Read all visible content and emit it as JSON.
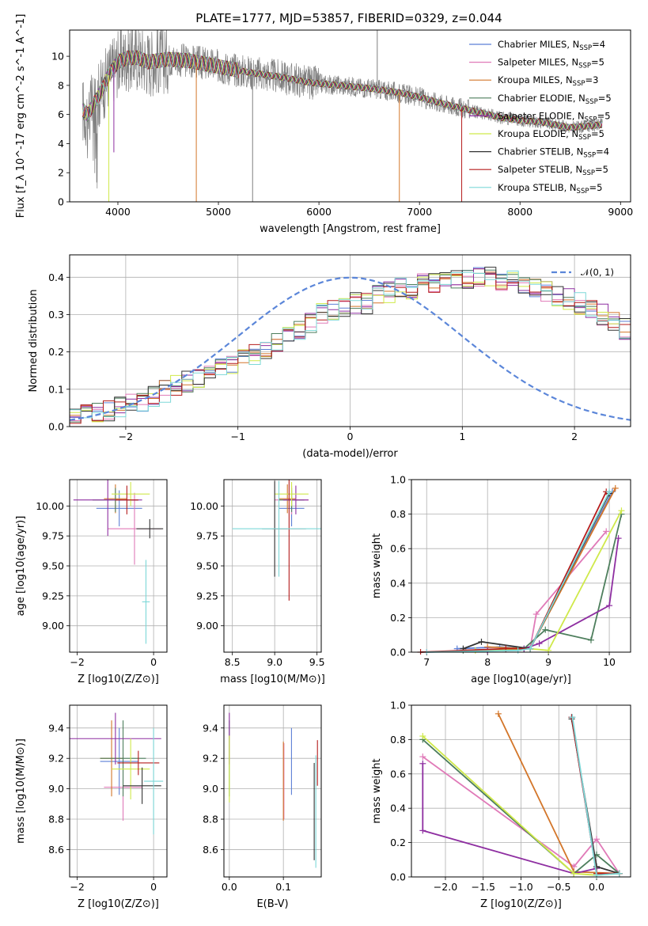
{
  "figure": {
    "title": "PLATE=1777, MJD=53857, FIBERID=0329, z=0.044"
  },
  "models": [
    {
      "name": "Chabrier MILES",
      "nssp": "4",
      "color": "#5c7fd6"
    },
    {
      "name": "Salpeter MILES",
      "nssp": "5",
      "color": "#e07ab8"
    },
    {
      "name": "Kroupa MILES",
      "nssp": "3",
      "color": "#d3762a"
    },
    {
      "name": "Chabrier ELODIE",
      "nssp": "5",
      "color": "#4d7e5c"
    },
    {
      "name": "Salpeter ELODIE",
      "nssp": "5",
      "color": "#8e2ea1"
    },
    {
      "name": "Kroupa ELODIE",
      "nssp": "5",
      "color": "#cfe94a"
    },
    {
      "name": "Chabrier STELIB",
      "nssp": "4",
      "color": "#333333"
    },
    {
      "name": "Salpeter STELIB",
      "nssp": "5",
      "color": "#b51c1c"
    },
    {
      "name": "Kroupa STELIB",
      "nssp": "5",
      "color": "#7dd8d8"
    }
  ],
  "chart_data": [
    {
      "id": "spectrum",
      "type": "line",
      "xlabel": "wavelength [Angstrom, rest frame]",
      "ylabel": "Flux [f_λ 10^-17 erg cm^-2 s^-1 A^-1]",
      "xlim": [
        3520,
        9100
      ],
      "ylim": [
        0,
        11.8
      ],
      "xticks": [
        "4000",
        "5000",
        "6000",
        "7000",
        "8000",
        "9000"
      ],
      "yticks": [
        "0",
        "2",
        "4",
        "6",
        "8",
        "10"
      ],
      "grid": false,
      "legend_position": "top-right",
      "data_color": "#808080",
      "continuum": {
        "x": [
          3650,
          3700,
          3750,
          3800,
          3850,
          3900,
          4000,
          4100,
          4200,
          4300,
          4500,
          4700,
          5000,
          5300,
          5600,
          5900,
          6200,
          6500,
          6800,
          7000,
          7200,
          7500,
          7800,
          8000,
          8200,
          8500,
          8800
        ],
        "y": [
          6.3,
          6.0,
          6.6,
          7.2,
          7.8,
          8.6,
          9.6,
          9.9,
          9.9,
          9.6,
          9.8,
          9.7,
          9.3,
          8.9,
          8.6,
          8.2,
          8.0,
          7.8,
          7.5,
          7.2,
          6.8,
          6.3,
          5.8,
          5.6,
          5.5,
          5.1,
          5.3
        ]
      },
      "spikes": [
        {
          "x": 3910,
          "y": 0.0,
          "series": "Kroupa ELODIE"
        },
        {
          "x": 3960,
          "y": 3.4,
          "series": "Salpeter ELODIE"
        },
        {
          "x": 4780,
          "y": 0.0,
          "series": "Kroupa MILES"
        },
        {
          "x": 5340,
          "y": 0.0,
          "series": "data"
        },
        {
          "x": 6580,
          "y": 11.8,
          "series": "data"
        },
        {
          "x": 6800,
          "y": 0.0,
          "series": "Kroupa MILES"
        },
        {
          "x": 7420,
          "y": 0.0,
          "series": "Salpeter STELIB"
        }
      ]
    },
    {
      "id": "residuals",
      "type": "bar",
      "xlabel": "(data-model)/error",
      "ylabel": "Normed distribution",
      "xlim": [
        -2.5,
        2.5
      ],
      "ylim": [
        0,
        0.46
      ],
      "xticks": [
        "−2",
        "−1",
        "0",
        "1",
        "2"
      ],
      "yticks": [
        "0.0",
        "0.1",
        "0.2",
        "0.3",
        "0.4"
      ],
      "grid": true,
      "legend": [
        {
          "label": "𝒩(0, 1)",
          "color": "#5b86d9",
          "style": "dashed"
        }
      ],
      "legend_position": "top-right",
      "bin_width": 0.1,
      "bin_start": -2.5,
      "envelope": [
        0.03,
        0.035,
        0.04,
        0.045,
        0.05,
        0.06,
        0.07,
        0.08,
        0.095,
        0.11,
        0.12,
        0.135,
        0.15,
        0.16,
        0.17,
        0.18,
        0.19,
        0.21,
        0.22,
        0.24,
        0.26,
        0.28,
        0.3,
        0.31,
        0.32,
        0.33,
        0.33,
        0.35,
        0.36,
        0.37,
        0.37,
        0.38,
        0.38,
        0.39,
        0.39,
        0.4,
        0.4,
        0.4,
        0.39,
        0.39,
        0.38,
        0.37,
        0.36,
        0.35,
        0.34,
        0.33,
        0.32,
        0.3,
        0.28,
        0.26
      ]
    },
    {
      "id": "age-vs-Z",
      "type": "scatter",
      "xlabel": "Z [log10(Z/Z⊙)]",
      "ylabel": "age  [log10(age/yr)]",
      "xlim": [
        -2.2,
        0.35
      ],
      "ylim": [
        8.78,
        10.22
      ],
      "xticks": [
        "−2",
        "0"
      ],
      "yticks": [
        "9.00",
        "9.25",
        "9.50",
        "9.75",
        "10.00"
      ],
      "grid": true,
      "points": [
        {
          "series": "Chabrier MILES",
          "x": -0.9,
          "y": 9.98,
          "xerr": 0.6,
          "yerr": 0.15
        },
        {
          "series": "Salpeter MILES",
          "x": -0.5,
          "y": 9.81,
          "xerr": 0.7,
          "yerr": 0.3
        },
        {
          "series": "Kroupa MILES",
          "x": -1.0,
          "y": 10.06,
          "xerr": 0.3,
          "yerr": 0.12
        },
        {
          "series": "Chabrier ELODIE",
          "x": -1.0,
          "y": 10.05,
          "xerr": 0.6,
          "yerr": 0.1
        },
        {
          "series": "Salpeter ELODIE",
          "x": -1.2,
          "y": 10.05,
          "xerr": 0.9,
          "yerr": 0.3
        },
        {
          "series": "Kroupa ELODIE",
          "x": -0.6,
          "y": 10.1,
          "xerr": 0.5,
          "yerr": 0.1
        },
        {
          "series": "Chabrier STELIB",
          "x": -0.1,
          "y": 9.81,
          "xerr": 0.35,
          "yerr": 0.08
        },
        {
          "series": "Salpeter STELIB",
          "x": -0.7,
          "y": 10.05,
          "xerr": 0.3,
          "yerr": 0.12
        },
        {
          "series": "Kroupa STELIB",
          "x": -0.2,
          "y": 9.2,
          "xerr": 0.1,
          "yerr": 0.35
        }
      ]
    },
    {
      "id": "age-vs-mass",
      "type": "scatter",
      "xlabel": "mass [log10(M/M⊙)]",
      "ylabel": "",
      "xlim": [
        8.4,
        9.55
      ],
      "ylim": [
        8.78,
        10.22
      ],
      "xticks": [
        "8.5",
        "9.0",
        "9.5"
      ],
      "yticks": [
        "9.00",
        "9.25",
        "9.50",
        "9.75",
        "10.00"
      ],
      "grid": true,
      "points": [
        {
          "series": "Chabrier MILES",
          "x": 9.2,
          "y": 9.98,
          "xerr": 0.15,
          "yerr": 0.15
        },
        {
          "series": "Salpeter MILES",
          "x": 9.2,
          "y": 10.05,
          "xerr": 0.2,
          "yerr": 0.12
        },
        {
          "series": "Kroupa MILES",
          "x": 9.15,
          "y": 10.06,
          "xerr": 0.1,
          "yerr": 0.12
        },
        {
          "series": "Chabrier ELODIE",
          "x": 9.2,
          "y": 10.05,
          "xerr": 0.15,
          "yerr": 0.1
        },
        {
          "series": "Salpeter ELODIE",
          "x": 9.25,
          "y": 10.05,
          "xerr": 0.15,
          "yerr": 0.12
        },
        {
          "series": "Kroupa ELODIE",
          "x": 9.2,
          "y": 10.1,
          "xerr": 0.2,
          "yerr": 0.1
        },
        {
          "series": "Chabrier STELIB",
          "x": 9.0,
          "y": 9.81,
          "xerr": 0.15,
          "yerr": 0.4
        },
        {
          "series": "Salpeter STELIB",
          "x": 9.17,
          "y": 9.81,
          "xerr": 0.2,
          "yerr": 0.6
        },
        {
          "series": "Kroupa STELIB",
          "x": 9.05,
          "y": 9.81,
          "xerr": 0.55,
          "yerr": 0.4
        }
      ]
    },
    {
      "id": "mass-weight-vs-age",
      "type": "line",
      "xlabel": "age  [log10(age/yr)]",
      "ylabel": "mass weight",
      "xlim": [
        6.75,
        10.35
      ],
      "ylim": [
        0,
        1
      ],
      "xticks": [
        "7",
        "8",
        "9",
        "10"
      ],
      "yticks": [
        "0.0",
        "0.2",
        "0.4",
        "0.6",
        "0.8",
        "1.0"
      ],
      "grid": true,
      "series": [
        {
          "name": "Chabrier MILES",
          "x": [
            7.5,
            8.2,
            8.7,
            10.05
          ],
          "y": [
            0.02,
            0.03,
            0.02,
            0.93
          ]
        },
        {
          "name": "Salpeter MILES",
          "x": [
            7.0,
            8.7,
            8.8,
            9.95
          ],
          "y": [
            0.0,
            0.02,
            0.22,
            0.7
          ]
        },
        {
          "name": "Kroupa MILES",
          "x": [
            8.0,
            8.7,
            10.1
          ],
          "y": [
            0.03,
            0.02,
            0.95
          ]
        },
        {
          "name": "Chabrier ELODIE",
          "x": [
            7.6,
            8.6,
            8.95,
            9.7,
            10.2
          ],
          "y": [
            0.01,
            0.02,
            0.13,
            0.07,
            0.8
          ]
        },
        {
          "name": "Salpeter ELODIE",
          "x": [
            8.0,
            8.6,
            8.85,
            10.0,
            10.15
          ],
          "y": [
            0.01,
            0.02,
            0.05,
            0.27,
            0.66
          ]
        },
        {
          "name": "Kroupa ELODIE",
          "x": [
            7.8,
            8.7,
            9.0,
            10.2
          ],
          "y": [
            0.01,
            0.02,
            0.01,
            0.82
          ]
        },
        {
          "name": "Chabrier STELIB",
          "x": [
            7.6,
            7.9,
            8.7,
            10.0
          ],
          "y": [
            0.02,
            0.06,
            0.02,
            0.92
          ]
        },
        {
          "name": "Salpeter STELIB",
          "x": [
            6.9,
            8.3,
            8.7,
            9.95
          ],
          "y": [
            0.0,
            0.02,
            0.02,
            0.93
          ]
        },
        {
          "name": "Kroupa STELIB",
          "x": [
            7.0,
            8.5,
            8.7,
            10.0
          ],
          "y": [
            0.0,
            0.01,
            0.02,
            0.93
          ]
        }
      ]
    },
    {
      "id": "mass-vs-Z",
      "type": "scatter",
      "xlabel": "Z [log10(Z/Z⊙)]",
      "ylabel": "mass [log10(M/M⊙)]",
      "xlim": [
        -2.2,
        0.35
      ],
      "ylim": [
        8.42,
        9.55
      ],
      "xticks": [
        "−2",
        "0"
      ],
      "yticks": [
        "8.6",
        "8.8",
        "9.0",
        "9.2",
        "9.4"
      ],
      "grid": true,
      "points": [
        {
          "series": "Chabrier MILES",
          "x": -0.9,
          "y": 9.18,
          "xerr": 0.5,
          "yerr": 0.22
        },
        {
          "series": "Salpeter MILES",
          "x": -0.8,
          "y": 9.01,
          "xerr": 0.5,
          "yerr": 0.22
        },
        {
          "series": "Kroupa MILES",
          "x": -1.1,
          "y": 9.2,
          "xerr": 0.3,
          "yerr": 0.25
        },
        {
          "series": "Chabrier ELODIE",
          "x": -0.8,
          "y": 9.2,
          "xerr": 0.6,
          "yerr": 0.25
        },
        {
          "series": "Salpeter ELODIE",
          "x": -1.0,
          "y": 9.33,
          "xerr": 1.2,
          "yerr": 0.17
        },
        {
          "series": "Kroupa ELODIE",
          "x": -0.6,
          "y": 9.13,
          "xerr": 0.5,
          "yerr": 0.2
        },
        {
          "series": "Chabrier STELIB",
          "x": -0.3,
          "y": 9.02,
          "xerr": 0.5,
          "yerr": 0.12
        },
        {
          "series": "Salpeter STELIB",
          "x": -0.4,
          "y": 9.17,
          "xerr": 0.55,
          "yerr": 0.08
        },
        {
          "series": "Kroupa STELIB",
          "x": 0.0,
          "y": 9.05,
          "xerr": 0.25,
          "yerr": 0.35
        }
      ]
    },
    {
      "id": "mass-vs-EBV",
      "type": "scatter",
      "xlabel": "E(B-V)",
      "ylabel": "",
      "xlim": [
        -0.01,
        0.17
      ],
      "ylim": [
        8.42,
        9.55
      ],
      "xticks": [
        "0.0",
        "0.1"
      ],
      "yticks": [
        "8.6",
        "8.8",
        "9.0",
        "9.2",
        "9.4"
      ],
      "grid": true,
      "points": [
        {
          "series": "Chabrier MILES",
          "x": 0.115,
          "y": 9.18,
          "yerr": 0.22
        },
        {
          "series": "Salpeter MILES",
          "x": 0.101,
          "y": 9.05,
          "yerr": 0.25
        },
        {
          "series": "Kroupa MILES",
          "x": 0.1,
          "y": 9.05,
          "yerr": 0.26
        },
        {
          "series": "Chabrier ELODIE",
          "x": 0.0,
          "y": 9.2,
          "yerr": 0.25
        },
        {
          "series": "Salpeter ELODIE",
          "x": 0.0,
          "y": 9.33,
          "yerr": 0.17
        },
        {
          "series": "Kroupa ELODIE",
          "x": 0.0,
          "y": 9.13,
          "yerr": 0.22
        },
        {
          "series": "Chabrier STELIB",
          "x": 0.157,
          "y": 8.85,
          "yerr": 0.32
        },
        {
          "series": "Salpeter STELIB",
          "x": 0.163,
          "y": 9.17,
          "yerr": 0.15
        },
        {
          "series": "Kroupa STELIB",
          "x": 0.16,
          "y": 8.85,
          "yerr": 0.37
        }
      ]
    },
    {
      "id": "mass-weight-vs-Z",
      "type": "line",
      "xlabel": "Z [log10(Z/Z⊙)]",
      "ylabel": "mass weight",
      "xlim": [
        -2.45,
        0.45
      ],
      "ylim": [
        0,
        1
      ],
      "xticks": [
        "−2.0",
        "−1.5",
        "−1.0",
        "−0.5",
        "0.0"
      ],
      "yticks": [
        "0.0",
        "0.2",
        "0.4",
        "0.6",
        "0.8",
        "1.0"
      ],
      "grid": true,
      "series": [
        {
          "name": "Chabrier MILES",
          "x": [
            -0.33,
            0.0,
            0.3
          ],
          "y": [
            0.93,
            0.02,
            0.02
          ]
        },
        {
          "name": "Salpeter MILES",
          "x": [
            -2.3,
            -0.3,
            0.0,
            0.3
          ],
          "y": [
            0.7,
            0.06,
            0.22,
            0.02
          ]
        },
        {
          "name": "Kroupa MILES",
          "x": [
            -1.3,
            -0.3,
            0.3
          ],
          "y": [
            0.95,
            0.03,
            0.02
          ]
        },
        {
          "name": "Chabrier ELODIE",
          "x": [
            -2.3,
            -0.3,
            0.0,
            0.3
          ],
          "y": [
            0.8,
            0.02,
            0.13,
            0.02
          ]
        },
        {
          "name": "Salpeter ELODIE",
          "x": [
            -2.3,
            -2.3,
            -0.3,
            0.0
          ],
          "y": [
            0.66,
            0.27,
            0.02,
            0.05
          ]
        },
        {
          "name": "Kroupa ELODIE",
          "x": [
            -2.3,
            -0.3,
            0.0,
            0.3
          ],
          "y": [
            0.82,
            0.02,
            0.01,
            0.02
          ]
        },
        {
          "name": "Chabrier STELIB",
          "x": [
            -0.33,
            0.0,
            0.3
          ],
          "y": [
            0.92,
            0.06,
            0.02
          ]
        },
        {
          "name": "Salpeter STELIB",
          "x": [
            -0.33,
            0.0,
            0.3
          ],
          "y": [
            0.93,
            0.02,
            0.02
          ]
        },
        {
          "name": "Kroupa STELIB",
          "x": [
            -0.32,
            0.0,
            0.3
          ],
          "y": [
            0.93,
            0.01,
            0.02
          ]
        }
      ]
    }
  ]
}
